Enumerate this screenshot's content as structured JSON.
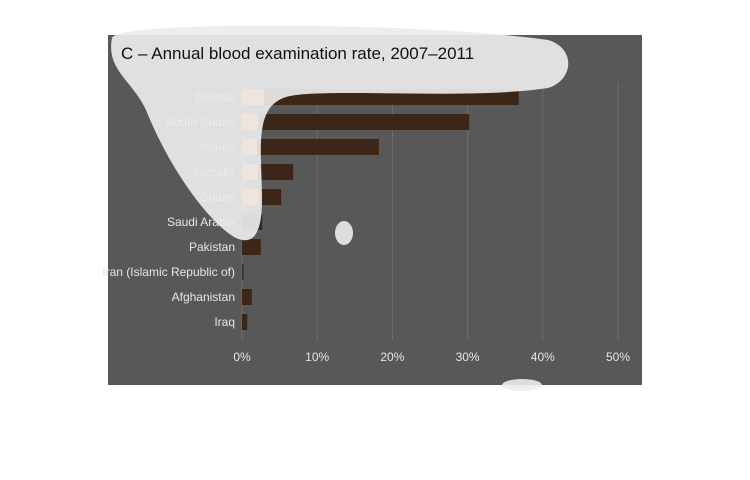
{
  "chart_data": {
    "type": "bar",
    "orientation": "horizontal",
    "title": "C – Annual blood examination rate, 2007–2011",
    "xlabel": "",
    "ylabel": "",
    "categories": [
      "Djibouti",
      "South Sudan",
      "Yemen",
      "Somalia",
      "Sudan",
      "Saudi Arabia",
      "Pakistan",
      "Iran (Islamic Republic of)",
      "Afghanistan",
      "Iraq"
    ],
    "series": [
      {
        "values": [
          36.8,
          30.2,
          18.2,
          6.8,
          5.2,
          2.7,
          2.5,
          0.2,
          1.3,
          0.7
        ]
      }
    ],
    "xlim": [
      0,
      50
    ],
    "x_ticks": [
      "0%",
      "10%",
      "20%",
      "30%",
      "40%",
      "50%"
    ],
    "grid": true,
    "legend": "none",
    "colors": {
      "bar": "#3b2618",
      "bar_highlight": "#f7953e",
      "background": "#585858",
      "gridline": "#6e6e6e",
      "axis_text": "#e6e6e6"
    }
  }
}
